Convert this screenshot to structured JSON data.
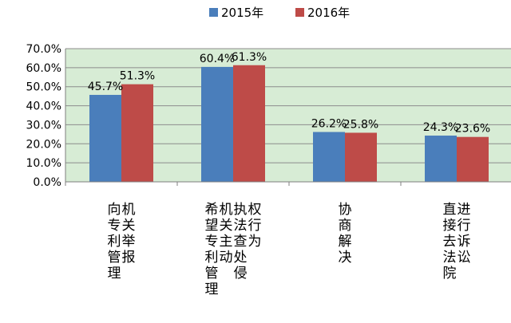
{
  "chart_data": {
    "type": "bar",
    "categories": [
      [
        "向专利管理",
        "机关举报"
      ],
      [
        "希望专利管理",
        "机关主动",
        "执法查处侵",
        "权行为"
      ],
      [
        "协商解决"
      ],
      [
        "直接去法院",
        "进行诉讼"
      ]
    ],
    "series": [
      {
        "name": "2015年",
        "values": [
          45.7,
          60.4,
          26.2,
          24.3
        ],
        "labels": [
          "45.7%",
          "60.4%",
          "26.2%",
          "24.3%"
        ],
        "color": "#4a7ebb"
      },
      {
        "name": "2016年",
        "values": [
          51.3,
          61.3,
          25.8,
          23.6
        ],
        "labels": [
          "51.3%",
          "61.3%",
          "25.8%",
          "23.6%"
        ],
        "color": "#be4b48"
      }
    ],
    "y_ticks": [
      "0.0%",
      "10.0%",
      "20.0%",
      "30.0%",
      "40.0%",
      "50.0%",
      "60.0%",
      "70.0%"
    ],
    "ylim": [
      0,
      70
    ],
    "grid": true,
    "plot_background": "#d7ecd5",
    "legend_position": "top"
  }
}
